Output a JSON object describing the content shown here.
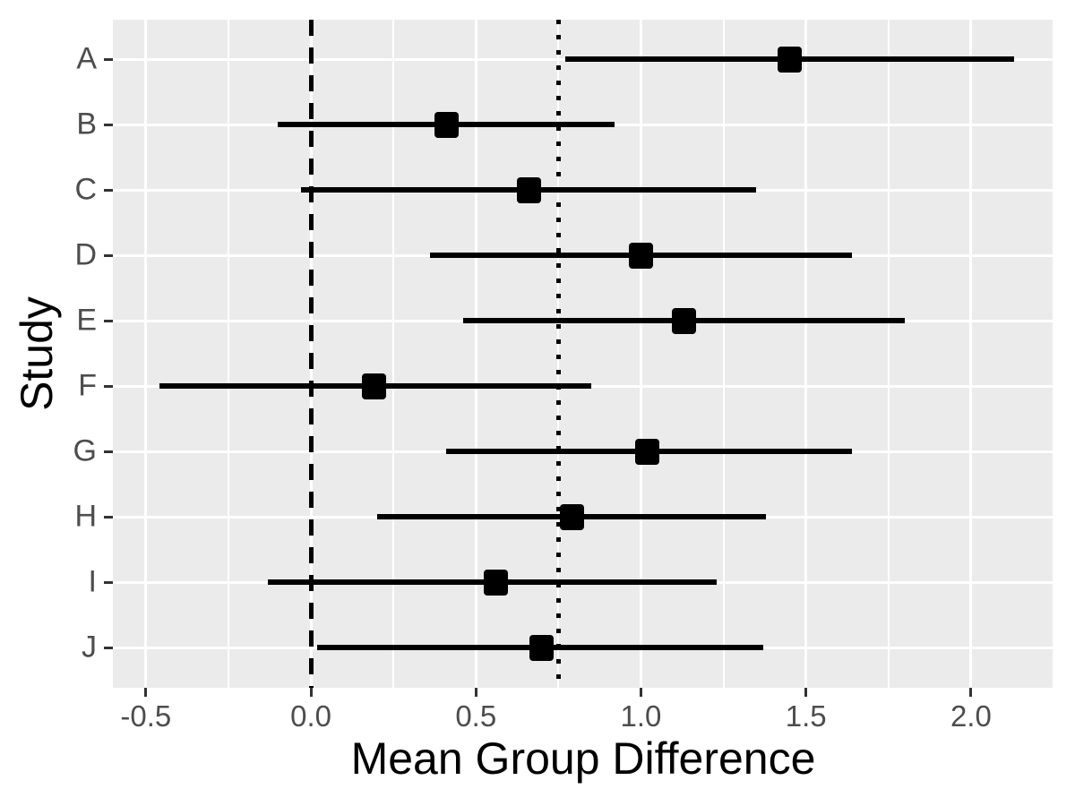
{
  "chart_data": {
    "type": "scatter",
    "subtype": "forest-plot-with-error-bars",
    "title": "",
    "xlabel": "Mean Group Difference",
    "ylabel": "Study",
    "categories": [
      "A",
      "B",
      "C",
      "D",
      "E",
      "F",
      "G",
      "H",
      "I",
      "J"
    ],
    "series": [
      {
        "name": "mean_group_difference",
        "values": [
          1.45,
          0.41,
          0.66,
          1.0,
          1.13,
          0.19,
          1.02,
          0.79,
          0.56,
          0.7
        ]
      },
      {
        "name": "ci_lower",
        "values": [
          0.77,
          -0.1,
          -0.03,
          0.36,
          0.46,
          -0.46,
          0.41,
          0.2,
          -0.13,
          0.02
        ]
      },
      {
        "name": "ci_upper",
        "values": [
          2.13,
          0.92,
          1.35,
          1.64,
          1.8,
          0.85,
          1.64,
          1.38,
          1.23,
          1.37
        ]
      }
    ],
    "x_ticks": [
      -0.5,
      0.0,
      0.5,
      1.0,
      1.5,
      2.0
    ],
    "x_tick_labels": [
      "-0.5",
      "0.0",
      "0.5",
      "1.0",
      "1.5",
      "2.0"
    ],
    "x_minor_ticks": [
      -0.25,
      0.25,
      0.75,
      1.25,
      1.75,
      2.25
    ],
    "xlim": [
      -0.6,
      2.25
    ],
    "reference_lines": [
      {
        "x": 0.0,
        "style": "dashed",
        "color": "#000000"
      },
      {
        "x": 0.75,
        "style": "dotted",
        "color": "#000000"
      }
    ],
    "grid": "on",
    "legend": "none",
    "marker_shape": "filled-square",
    "colors": {
      "panel_background": "#EBEBEB",
      "gridline": "#FFFFFF",
      "axis_text": "#4D4D4D",
      "axis_title": "#000000",
      "tick_marks": "#333333",
      "data": "#000000"
    }
  }
}
